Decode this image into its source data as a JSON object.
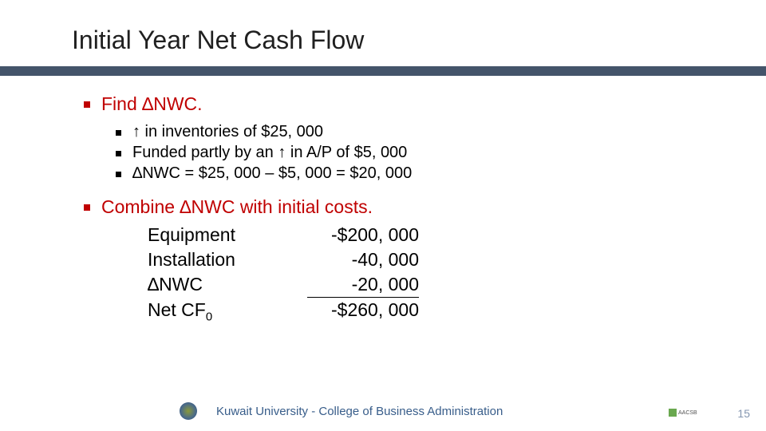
{
  "title": "Initial Year Net Cash Flow",
  "section1": {
    "heading": "Find ∆NWC.",
    "items": [
      "↑ in inventories of $25, 000",
      "Funded partly by an ↑  in A/P of $5, 000",
      "∆NWC = $25, 000 – $5, 000 = $20, 000"
    ]
  },
  "section2": {
    "heading": "Combine ∆NWC with initial costs.",
    "rows": [
      {
        "label": "Equipment",
        "value": "-$200, 000",
        "underline": false
      },
      {
        "label": "Installation",
        "value": "-40, 000",
        "underline": false
      },
      {
        "label": "∆NWC",
        "value": "-20, 000",
        "underline": true
      },
      {
        "label": "Net CF",
        "sub": "0",
        "value": "-$260, 000",
        "underline": false
      }
    ]
  },
  "footer": {
    "text": "Kuwait University - College of Business Administration",
    "page": "15"
  },
  "colors": {
    "accent_red": "#c00000",
    "title_bar": "#44546a",
    "footer_text": "#385d8a",
    "page_num": "#8496b0"
  }
}
